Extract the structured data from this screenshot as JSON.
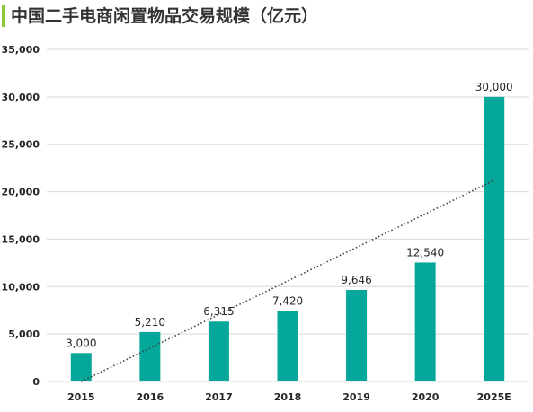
{
  "title": "中国二手电商闲置物品交易规模（亿元）",
  "colors": {
    "bar": "#05a79b",
    "accent": "#8dc63f",
    "grid": "#d9d9d9",
    "trend": "#404040"
  },
  "chart_data": {
    "type": "bar",
    "title": "中国二手电商闲置物品交易规模（亿元）",
    "categories": [
      "2015",
      "2016",
      "2017",
      "2018",
      "2019",
      "2020",
      "2025E"
    ],
    "values": [
      3000,
      5210,
      6315,
      7420,
      9646,
      12540,
      30000
    ],
    "value_labels": [
      "3,000",
      "5,210",
      "6,315",
      "7,420",
      "9,646",
      "12,540",
      "30,000"
    ],
    "ylim": [
      0,
      35000
    ],
    "yticks": [
      0,
      5000,
      10000,
      15000,
      20000,
      25000,
      30000,
      35000
    ],
    "ytick_labels": [
      "0",
      "5,000",
      "10,000",
      "15,000",
      "20,000",
      "25,000",
      "30,000",
      "35,000"
    ],
    "grid": true,
    "trendline": {
      "type": "linear",
      "style": "dotted"
    },
    "xlabel": "",
    "ylabel": ""
  }
}
